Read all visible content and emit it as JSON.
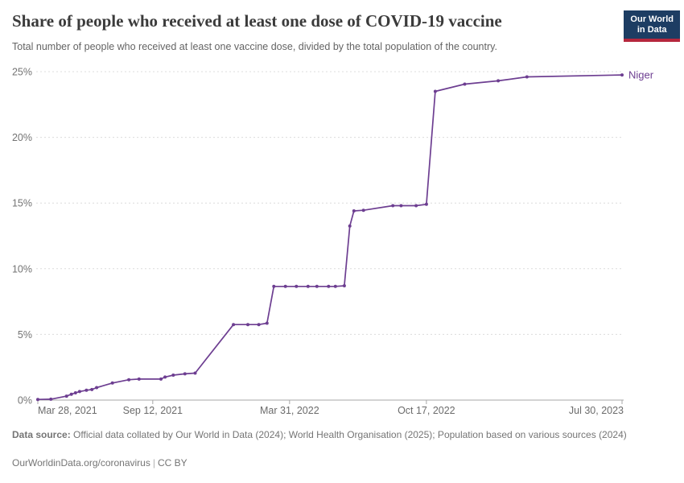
{
  "header": {
    "title": "Share of people who received at least one dose of COVID-19 vaccine",
    "subtitle": "Total number of people who received at least one vaccine dose, divided by the total population of the country."
  },
  "logo": {
    "line1": "Our World",
    "line2": "in Data"
  },
  "colors": {
    "series_accent": "#6d3e91",
    "logo_bg": "#1d3d63",
    "logo_accent": "#b5273d",
    "gridline": "#dcdcdc",
    "axis_line": "#a7a7a7",
    "tick_label": "#737373"
  },
  "chart_data": {
    "type": "line",
    "title": "Share of people who received at least one dose of COVID-19 vaccine",
    "xlabel": "",
    "ylabel": "",
    "ylim": [
      0,
      25
    ],
    "yticks": [
      0,
      5,
      10,
      15,
      20,
      25
    ],
    "ytick_suffix": "%",
    "grid": "horizontal-dashed",
    "legend_position": "end-of-line-label",
    "x_range": [
      "2021-03-28",
      "2023-07-30"
    ],
    "xticks": [
      {
        "date": "2021-03-28",
        "label": "Mar 28, 2021"
      },
      {
        "date": "2021-09-12",
        "label": "Sep 12, 2021"
      },
      {
        "date": "2022-03-31",
        "label": "Mar 31, 2022"
      },
      {
        "date": "2022-10-17",
        "label": "Oct 17, 2022"
      },
      {
        "date": "2023-07-30",
        "label": "Jul 30, 2023"
      }
    ],
    "series": [
      {
        "name": "Niger",
        "color": "#6d3e91",
        "points": [
          [
            "2021-03-28",
            0.05
          ],
          [
            "2021-04-16",
            0.07
          ],
          [
            "2021-05-09",
            0.3
          ],
          [
            "2021-05-16",
            0.45
          ],
          [
            "2021-05-22",
            0.55
          ],
          [
            "2021-05-28",
            0.65
          ],
          [
            "2021-06-07",
            0.75
          ],
          [
            "2021-06-15",
            0.8
          ],
          [
            "2021-06-22",
            0.95
          ],
          [
            "2021-07-15",
            1.3
          ],
          [
            "2021-08-08",
            1.55
          ],
          [
            "2021-08-23",
            1.6
          ],
          [
            "2021-09-24",
            1.6
          ],
          [
            "2021-09-30",
            1.75
          ],
          [
            "2021-10-12",
            1.9
          ],
          [
            "2021-10-29",
            2.0
          ],
          [
            "2021-11-13",
            2.05
          ],
          [
            "2022-01-08",
            5.75
          ],
          [
            "2022-01-29",
            5.75
          ],
          [
            "2022-02-14",
            5.75
          ],
          [
            "2022-02-26",
            5.85
          ],
          [
            "2022-03-08",
            8.65
          ],
          [
            "2022-03-25",
            8.65
          ],
          [
            "2022-04-10",
            8.65
          ],
          [
            "2022-04-27",
            8.65
          ],
          [
            "2022-05-10",
            8.65
          ],
          [
            "2022-05-27",
            8.65
          ],
          [
            "2022-06-06",
            8.65
          ],
          [
            "2022-06-19",
            8.7
          ],
          [
            "2022-06-27",
            13.25
          ],
          [
            "2022-07-03",
            14.4
          ],
          [
            "2022-07-17",
            14.45
          ],
          [
            "2022-08-29",
            14.8
          ],
          [
            "2022-09-10",
            14.8
          ],
          [
            "2022-10-02",
            14.8
          ],
          [
            "2022-10-17",
            14.9
          ],
          [
            "2022-10-30",
            23.5
          ],
          [
            "2022-12-12",
            24.05
          ],
          [
            "2023-01-30",
            24.3
          ],
          [
            "2023-03-13",
            24.6
          ],
          [
            "2023-07-30",
            24.75
          ]
        ]
      }
    ]
  },
  "footer": {
    "source_label": "Data source:",
    "source_text": "Official data collated by Our World in Data (2024); World Health Organisation (2025); Population based on various sources (2024)",
    "url": "OurWorldinData.org/coronavirus",
    "separator": "|",
    "license": "CC BY"
  }
}
